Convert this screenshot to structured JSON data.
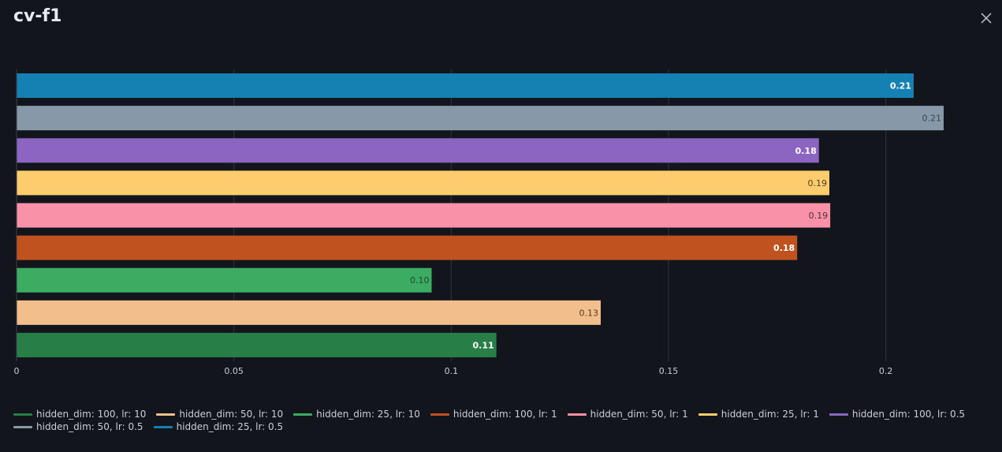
{
  "panel": {
    "title": "cv-f1"
  },
  "chart_data": {
    "type": "bar",
    "orientation": "horizontal",
    "title": "",
    "xlabel": "",
    "ylabel": "",
    "xlim": [
      0,
      0.2133
    ],
    "xticks": [
      {
        "value": 0,
        "label": "0"
      },
      {
        "value": 0.05,
        "label": "0.05"
      },
      {
        "value": 0.1,
        "label": "0.1"
      },
      {
        "value": 0.15,
        "label": "0.15"
      },
      {
        "value": 0.2,
        "label": "0.2"
      }
    ],
    "grid": true,
    "legend_position": "bottom",
    "bars": [
      {
        "name": "hidden_dim: 25, lr: 0.5",
        "value": 0.2064,
        "label": "0.21",
        "color": "#1580b2",
        "label_color": "#ffffff",
        "label_bold": true
      },
      {
        "name": "hidden_dim: 50, lr: 0.5",
        "value": 0.2133,
        "label": "0.21",
        "color": "#8799a8",
        "label_color": "#3a4652",
        "label_bold": false
      },
      {
        "name": "hidden_dim: 100, lr: 0.5",
        "value": 0.1846,
        "label": "0.18",
        "color": "#8c65c3",
        "label_color": "#ffffff",
        "label_bold": true
      },
      {
        "name": "hidden_dim: 25, lr: 1",
        "value": 0.187,
        "label": "0.19",
        "color": "#fccc6d",
        "label_color": "#4e4024",
        "label_bold": false
      },
      {
        "name": "hidden_dim: 50, lr: 1",
        "value": 0.1872,
        "label": "0.19",
        "color": "#f991a8",
        "label_color": "#4e3038",
        "label_bold": false
      },
      {
        "name": "hidden_dim: 100, lr: 1",
        "value": 0.1796,
        "label": "0.18",
        "color": "#bf521e",
        "label_color": "#ffffff",
        "label_bold": true
      },
      {
        "name": "hidden_dim: 25, lr: 10",
        "value": 0.0955,
        "label": "0.10",
        "color": "#3cac62",
        "label_color": "#1e4a2c",
        "label_bold": false
      },
      {
        "name": "hidden_dim: 50, lr: 10",
        "value": 0.1344,
        "label": "0.13",
        "color": "#f2bf8c",
        "label_color": "#4e3c28",
        "label_bold": false
      },
      {
        "name": "hidden_dim: 100, lr: 10",
        "value": 0.1104,
        "label": "0.11",
        "color": "#277f47",
        "label_color": "#ffffff",
        "label_bold": true
      }
    ],
    "legend": [
      {
        "name": "hidden_dim: 100, lr: 10",
        "color": "#277f47"
      },
      {
        "name": "hidden_dim: 50, lr: 10",
        "color": "#f2bf8c"
      },
      {
        "name": "hidden_dim: 25, lr: 10",
        "color": "#3cac62"
      },
      {
        "name": "hidden_dim: 100, lr: 1",
        "color": "#bf521e"
      },
      {
        "name": "hidden_dim: 50, lr: 1",
        "color": "#f991a8"
      },
      {
        "name": "hidden_dim: 25, lr: 1",
        "color": "#fccc6d"
      },
      {
        "name": "hidden_dim: 100, lr: 0.5",
        "color": "#8c65c3"
      },
      {
        "name": "hidden_dim: 50, lr: 0.5",
        "color": "#8799a8"
      },
      {
        "name": "hidden_dim: 25, lr: 0.5",
        "color": "#1580b2"
      }
    ]
  }
}
